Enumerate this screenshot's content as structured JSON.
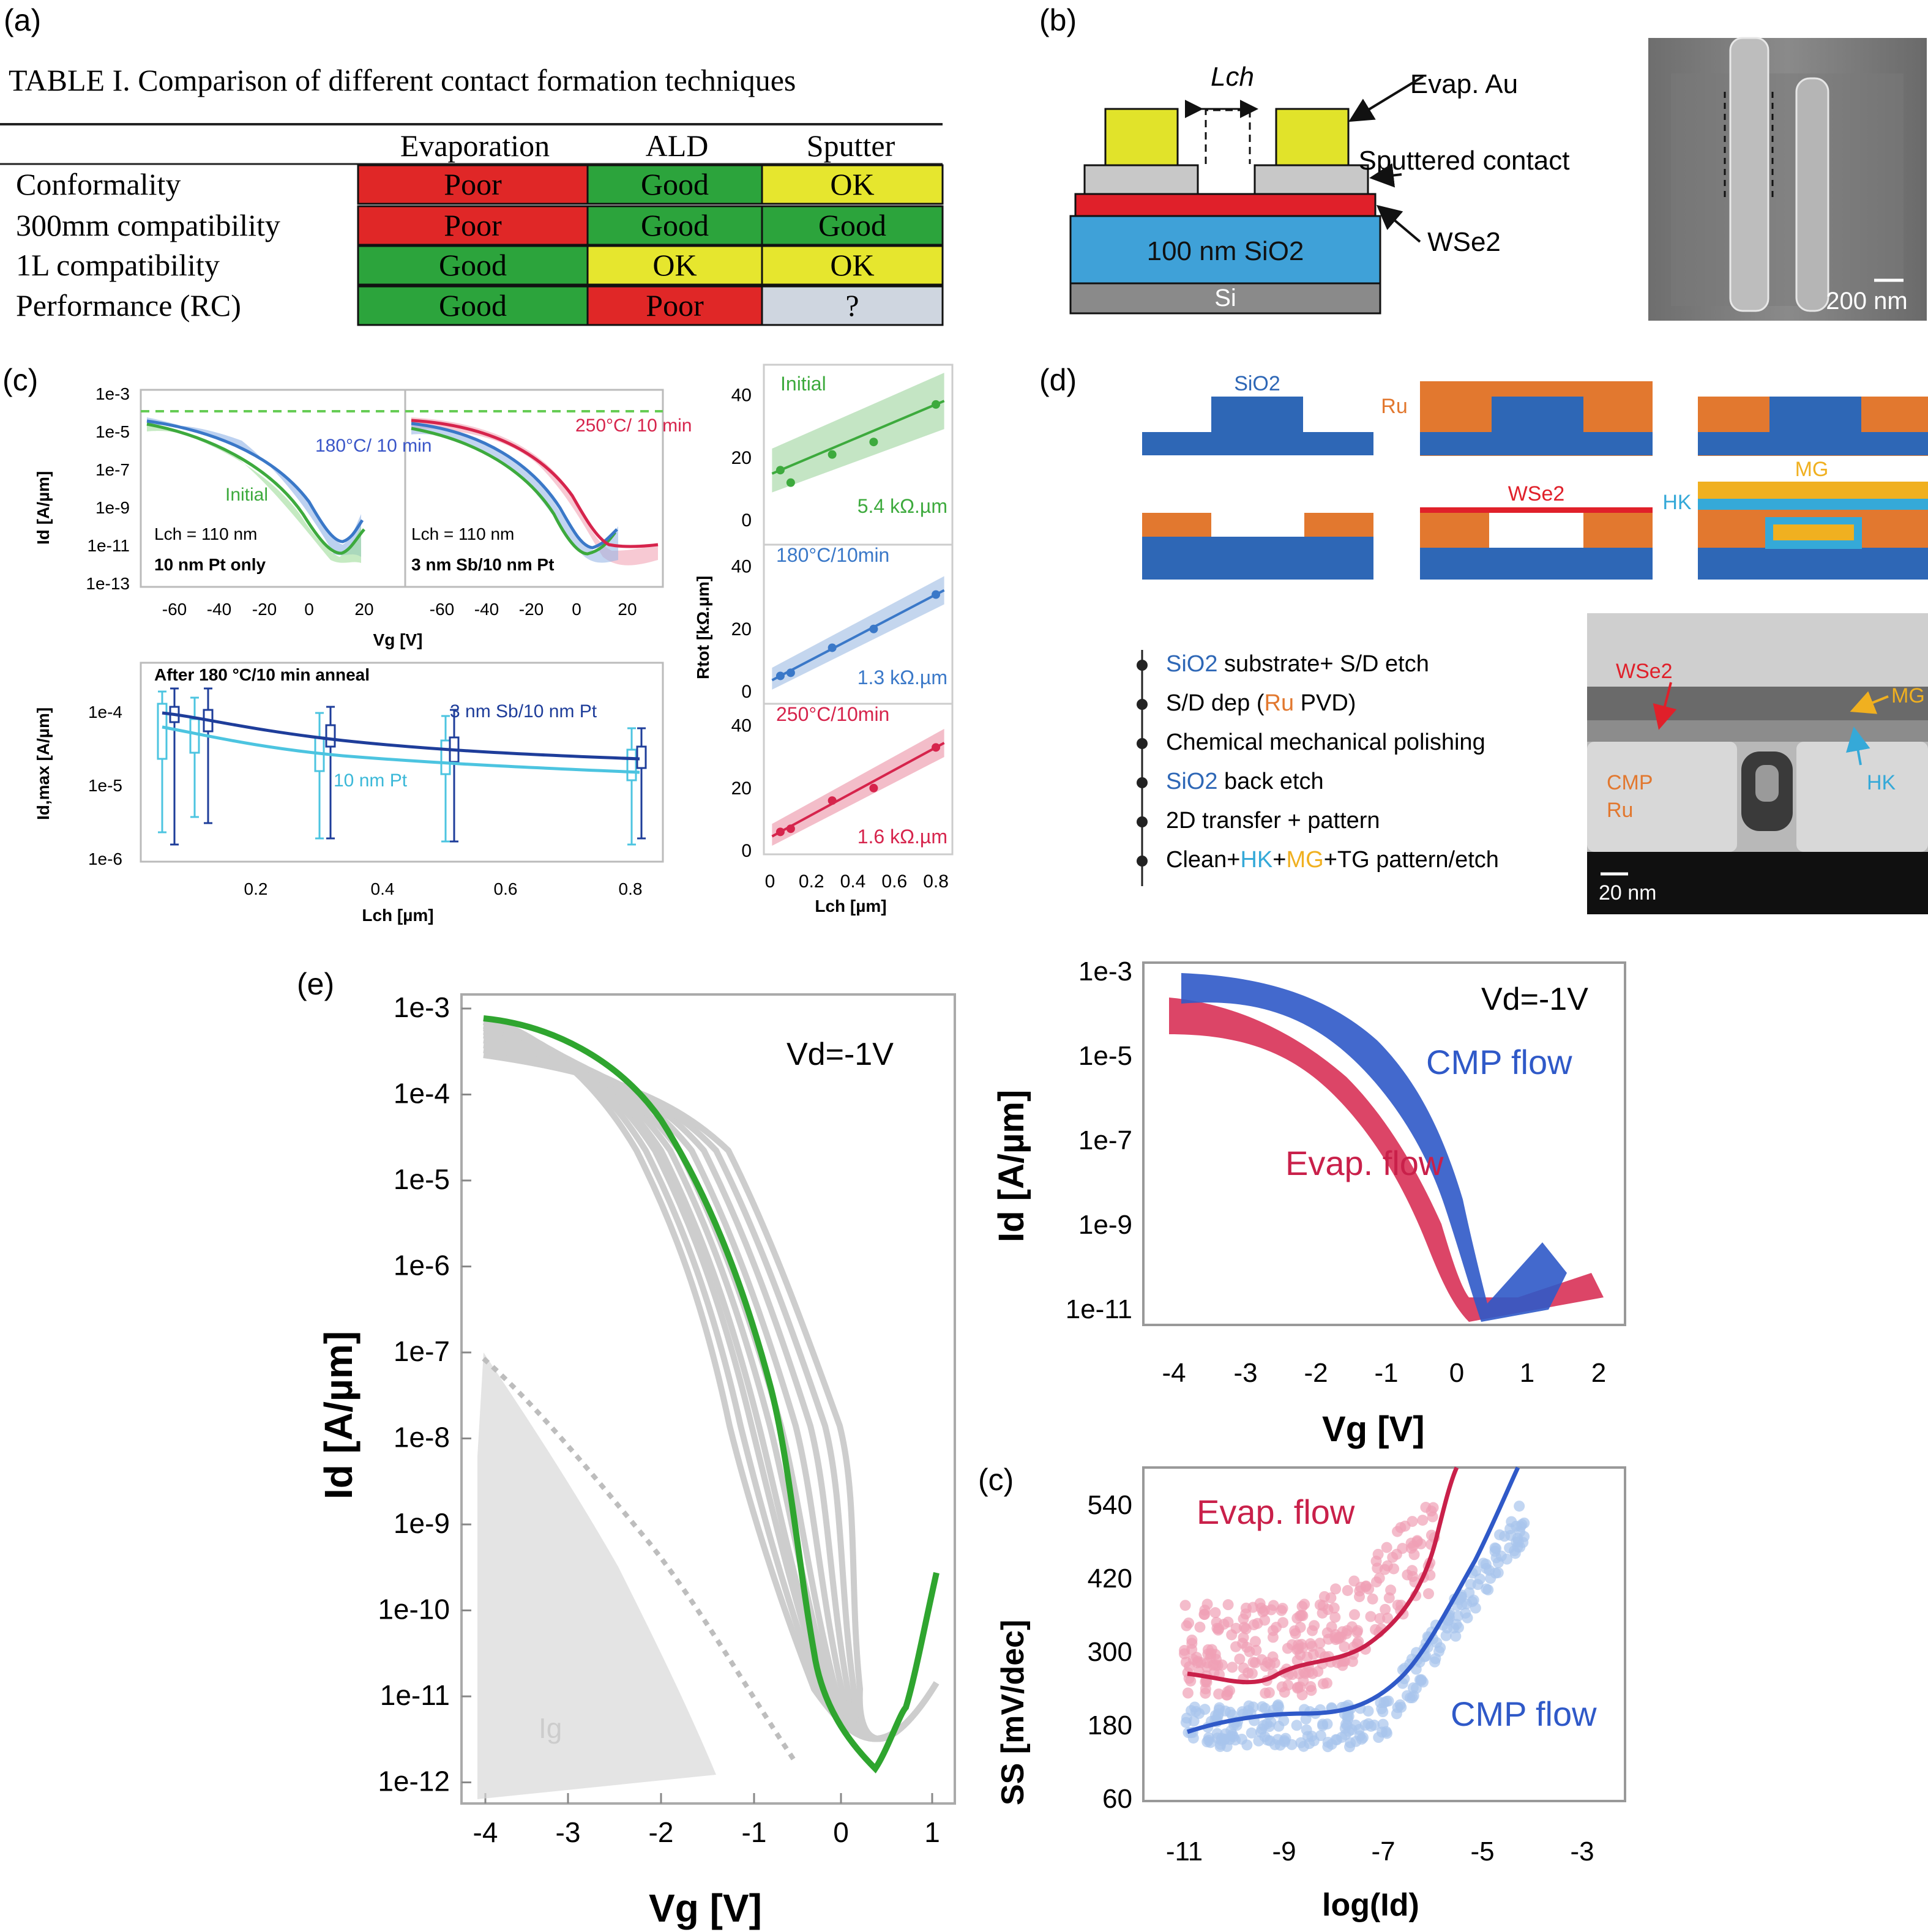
{
  "panel_labels": {
    "a": "(a)",
    "b": "(b)",
    "c": "(c)",
    "d": "(d)",
    "e": "(e)",
    "e_inner_c": "(c)"
  },
  "panel_a": {
    "caption": "TABLE I. Comparison of different contact formation techniques",
    "columns": [
      "Evaporation",
      "ALD",
      "Sputter"
    ],
    "rows": [
      {
        "label": "Conformality",
        "cells": [
          "Poor",
          "Good",
          "OK"
        ],
        "colors": [
          "#e02727",
          "#2ca43c",
          "#e6e62e"
        ]
      },
      {
        "label": "300mm compatibility",
        "cells": [
          "Poor",
          "Good",
          "Good"
        ],
        "colors": [
          "#e02727",
          "#2ca43c",
          "#2ca43c"
        ]
      },
      {
        "label": "1L compatibility",
        "cells": [
          "Good",
          "OK",
          "OK"
        ],
        "colors": [
          "#2ca43c",
          "#e6e62e",
          "#e6e62e"
        ]
      },
      {
        "label": "Performance (RC)",
        "cells": [
          "Good",
          "Poor",
          "?"
        ],
        "colors": [
          "#2ca43c",
          "#e02727",
          "#cfd6e0"
        ]
      }
    ]
  },
  "panel_b": {
    "lch": "Lch",
    "substrate": "100 nm SiO2",
    "si": "Si",
    "labels": [
      "Evap. Au",
      "Sputtered contact",
      "WSe2"
    ],
    "scalebar": "200 nm",
    "colors": {
      "au": "#e1e32a",
      "contact": "#c8c8c8",
      "wse2": "#e0202a",
      "sio2": "#3fa1d8",
      "si": "#8a8a8a"
    }
  },
  "panel_c": {
    "transfer": {
      "ylabel": "Id [A/µm]",
      "xlabel": "Vg [V]",
      "yticks": [
        "1e-3",
        "1e-5",
        "1e-7",
        "1e-9",
        "1e-11",
        "1e-13"
      ],
      "xticks": [
        "-60",
        "-40",
        "-20",
        "0",
        "20"
      ],
      "left": {
        "lch": "Lch = 110 nm",
        "sample": "10 nm Pt only",
        "ann1": "180°C/ 10 min",
        "ann2": "Initial"
      },
      "right": {
        "lch": "Lch = 110 nm",
        "sample": "3 nm Sb/10 nm Pt",
        "ann1": "250°C/ 10 min"
      }
    },
    "idmax": {
      "title": "After 180 °C/10 min anneal",
      "ylabel": "Id,max [A/µm]",
      "xlabel": "Lch [µm]",
      "yticks": [
        "1e-4",
        "1e-5",
        "1e-6"
      ],
      "xticks": [
        "0.2",
        "0.4",
        "0.6",
        "0.8"
      ],
      "series_labels": [
        "3 nm Sb/10 nm Pt",
        "10 nm Pt"
      ]
    },
    "rtot": {
      "ylabel": "Rtot [kΩ.µm]",
      "xlabel": "Lch [µm]",
      "xticks": [
        "0",
        "0.2",
        "0.4",
        "0.6",
        "0.8"
      ],
      "yticks": [
        "40",
        "20",
        "0"
      ],
      "subplots": [
        {
          "name": "Initial",
          "rc": "5.4 kΩ.µm",
          "color": "#3daa3d"
        },
        {
          "name": "180°C/10min",
          "rc": "1.3 kΩ.µm",
          "color": "#3a78c8"
        },
        {
          "name": "250°C/10min",
          "rc": "1.6 kΩ.µm",
          "color": "#d6244c"
        }
      ]
    }
  },
  "panel_d": {
    "labels": {
      "sio2": "SiO2",
      "ru": "Ru",
      "wse2": "WSe2",
      "hk": "HK",
      "mg": "MG"
    },
    "steps": [
      [
        "SiO2",
        " substrate+ S/D etch"
      ],
      [
        "S/D dep (",
        "Ru",
        " PVD)"
      ],
      [
        "Chemical mechanical polishing"
      ],
      [
        "SiO2",
        " back etch"
      ],
      [
        "2D transfer + pattern"
      ],
      [
        "Clean+",
        "HK",
        "+",
        "MG",
        "+TG pattern/etch"
      ]
    ],
    "tem": {
      "wse2": "WSe2",
      "mg": "MG",
      "hk": "HK",
      "cmp": "CMP",
      "ru": "Ru",
      "scale": "20 nm"
    },
    "colors": {
      "sio2": "#2e67b6",
      "ru": "#e2782f",
      "wse2": "#e0202a",
      "hk": "#35a9d8",
      "mg": "#f0b020"
    }
  },
  "panel_e": {
    "main": {
      "ylabel": "Id [A/µm]",
      "xlabel": "Vg [V]",
      "vd": "Vd=-1V",
      "ig": "Ig",
      "yticks": [
        "1e-3",
        "1e-4",
        "1e-5",
        "1e-6",
        "1e-7",
        "1e-8",
        "1e-9",
        "1e-10",
        "1e-11",
        "1e-12"
      ],
      "xticks": [
        "-4",
        "-3",
        "-2",
        "-1",
        "0",
        "1"
      ]
    },
    "transfer": {
      "ylabel": "Id [A/µm]",
      "xlabel": "Vg [V]",
      "vd": "Vd=-1V",
      "yticks": [
        "1e-3",
        "1e-5",
        "1e-7",
        "1e-9",
        "1e-11"
      ],
      "xticks": [
        "-4",
        "-3",
        "-2",
        "-1",
        "0",
        "1",
        "2"
      ],
      "labels": [
        "CMP flow",
        "Evap. flow"
      ]
    },
    "ss": {
      "ylabel": "SS [mV/dec]",
      "xlabel": "log(Id)",
      "yticks": [
        "540",
        "420",
        "300",
        "180",
        "60"
      ],
      "xticks": [
        "-11",
        "-9",
        "-7",
        "-5",
        "-3"
      ],
      "labels": [
        "Evap. flow",
        "CMP flow"
      ]
    }
  },
  "chart_data": [
    {
      "type": "line",
      "title": "",
      "xlabel": "Lch [µm]",
      "ylabel": "Rtot [kΩ.µm]",
      "ylim": [
        0,
        45
      ],
      "series": [
        {
          "name": "Initial",
          "x": [
            0.05,
            0.1,
            0.3,
            0.5,
            0.8
          ],
          "values": [
            16,
            12,
            21,
            25,
            37
          ]
        },
        {
          "name": "180°C/10min",
          "x": [
            0.05,
            0.1,
            0.3,
            0.5,
            0.8
          ],
          "values": [
            5,
            6,
            14,
            20,
            31
          ]
        },
        {
          "name": "250°C/10min",
          "x": [
            0.05,
            0.1,
            0.3,
            0.5,
            0.8
          ],
          "values": [
            6,
            7,
            16,
            20,
            33
          ]
        }
      ]
    },
    {
      "type": "line",
      "title": "After 180 °C/10 min anneal",
      "xlabel": "Lch [µm]",
      "ylabel": "Id,max [A/µm]",
      "series": [
        {
          "name": "3 nm Sb/10 nm Pt",
          "x": [
            0.06,
            0.12,
            0.32,
            0.52,
            0.82
          ],
          "values": [
            9e-05,
            7e-05,
            4e-05,
            3e-05,
            2.5e-05
          ]
        },
        {
          "name": "10 nm Pt",
          "x": [
            0.05,
            0.1,
            0.3,
            0.5,
            0.8
          ],
          "values": [
            6e-05,
            4e-05,
            2e-05,
            1.8e-05,
            1.5e-05
          ]
        }
      ]
    },
    {
      "type": "scatter",
      "title": "",
      "xlabel": "log(Id)",
      "ylabel": "SS [mV/dec]",
      "ylim": [
        60,
        600
      ],
      "series": [
        {
          "name": "Evap. flow",
          "x": [
            -11,
            -10,
            -9,
            -8,
            -7,
            -6,
            -5.5
          ],
          "values": [
            280,
            270,
            250,
            290,
            330,
            440,
            560
          ]
        },
        {
          "name": "CMP flow",
          "x": [
            -11,
            -10,
            -9,
            -8,
            -7,
            -6,
            -5,
            -4.5
          ],
          "values": [
            180,
            200,
            210,
            210,
            230,
            310,
            420,
            580
          ]
        }
      ]
    }
  ]
}
